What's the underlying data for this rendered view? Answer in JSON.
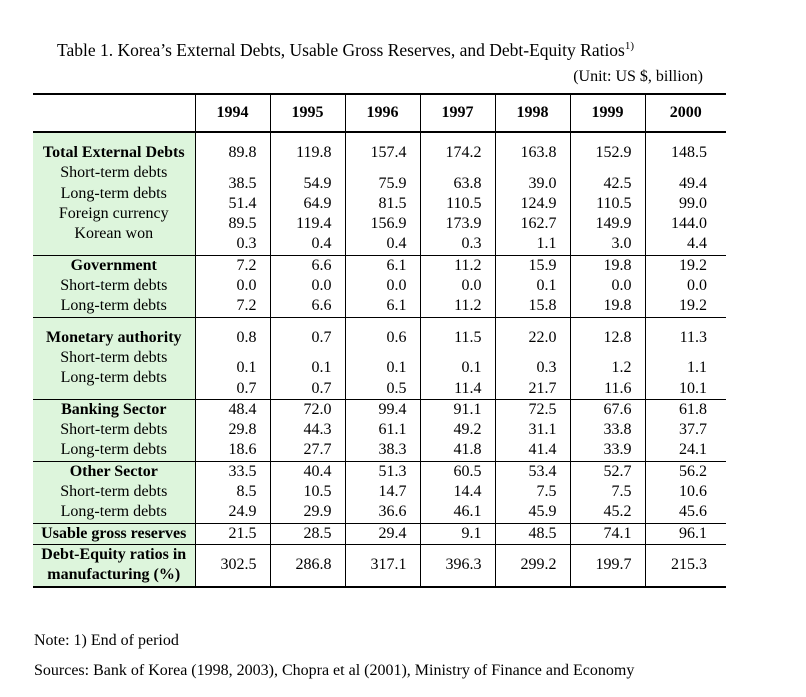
{
  "title": "Table 1. Korea’s External Debts, Usable Gross Reserves, and Debt-Equity Ratios",
  "title_footnote": "1)",
  "unit": "(Unit: US $, billion)",
  "years": [
    "1994",
    "1995",
    "1996",
    "1997",
    "1998",
    "1999",
    "2000"
  ],
  "groups": [
    {
      "rows": [
        {
          "label": "Total External Debts",
          "values": [
            "89.8",
            "119.8",
            "157.4",
            "174.2",
            "163.8",
            "152.9",
            "148.5"
          ]
        },
        {
          "label": "Short-term debts",
          "values": [
            "38.5",
            "54.9",
            "75.9",
            "63.8",
            "39.0",
            "42.5",
            "49.4"
          ]
        },
        {
          "label": "Long-term debts",
          "values": [
            "51.4",
            "64.9",
            "81.5",
            "110.5",
            "124.9",
            "110.5",
            "99.0"
          ]
        },
        {
          "label": "Foreign currency",
          "values": [
            "89.5",
            "119.4",
            "156.9",
            "173.9",
            "162.7",
            "149.9",
            "144.0"
          ]
        },
        {
          "label": "Korean won",
          "values": [
            "0.3",
            "0.4",
            "0.4",
            "0.3",
            "1.1",
            "3.0",
            "4.4"
          ]
        }
      ]
    },
    {
      "rows": [
        {
          "label": "Government",
          "values": [
            "7.2",
            "6.6",
            "6.1",
            "11.2",
            "15.9",
            "19.8",
            "19.2"
          ]
        },
        {
          "label": "Short-term debts",
          "values": [
            "0.0",
            "0.0",
            "0.0",
            "0.0",
            "0.1",
            "0.0",
            "0.0"
          ]
        },
        {
          "label": "Long-term debts",
          "values": [
            "7.2",
            "6.6",
            "6.1",
            "11.2",
            "15.8",
            "19.8",
            "19.2"
          ]
        }
      ]
    },
    {
      "rows": [
        {
          "label": "Monetary authority",
          "values": [
            "0.8",
            "0.7",
            "0.6",
            "11.5",
            "22.0",
            "12.8",
            "11.3"
          ]
        },
        {
          "label": "Short-term debts",
          "values": [
            "0.1",
            "0.1",
            "0.1",
            "0.1",
            "0.3",
            "1.2",
            "1.1"
          ]
        },
        {
          "label": "Long-term debts",
          "values": [
            "0.7",
            "0.7",
            "0.5",
            "11.4",
            "21.7",
            "11.6",
            "10.1"
          ]
        }
      ]
    },
    {
      "rows": [
        {
          "label": "Banking Sector",
          "values": [
            "48.4",
            "72.0",
            "99.4",
            "91.1",
            "72.5",
            "67.6",
            "61.8"
          ]
        },
        {
          "label": "Short-term debts",
          "values": [
            "29.8",
            "44.3",
            "61.1",
            "49.2",
            "31.1",
            "33.8",
            "37.7"
          ]
        },
        {
          "label": "Long-term debts",
          "values": [
            "18.6",
            "27.7",
            "38.3",
            "41.8",
            "41.4",
            "33.9",
            "24.1"
          ]
        }
      ]
    },
    {
      "rows": [
        {
          "label": "Other Sector",
          "values": [
            "33.5",
            "40.4",
            "51.3",
            "60.5",
            "53.4",
            "52.7",
            "56.2"
          ]
        },
        {
          "label": "Short-term debts",
          "values": [
            "8.5",
            "10.5",
            "14.7",
            "14.4",
            "7.5",
            "7.5",
            "10.6"
          ]
        },
        {
          "label": "Long-term debts",
          "values": [
            "24.9",
            "29.9",
            "36.6",
            "46.1",
            "45.9",
            "45.2",
            "45.6"
          ]
        }
      ]
    },
    {
      "rows": [
        {
          "label": "Usable gross reserves",
          "values": [
            "21.5",
            "28.5",
            "29.4",
            "9.1",
            "48.5",
            "74.1",
            "96.1"
          ]
        }
      ]
    },
    {
      "rows": [
        {
          "label": "Debt-Equity ratios in manufacturing (%)",
          "values": [
            "302.5",
            "286.8",
            "317.1",
            "396.3",
            "299.2",
            "199.7",
            "215.3"
          ]
        }
      ]
    }
  ],
  "note": "Note: 1) End of period",
  "sources": "Sources: Bank of Korea (1998, 2003), Chopra et al (2001), Ministry of Finance and Economy"
}
